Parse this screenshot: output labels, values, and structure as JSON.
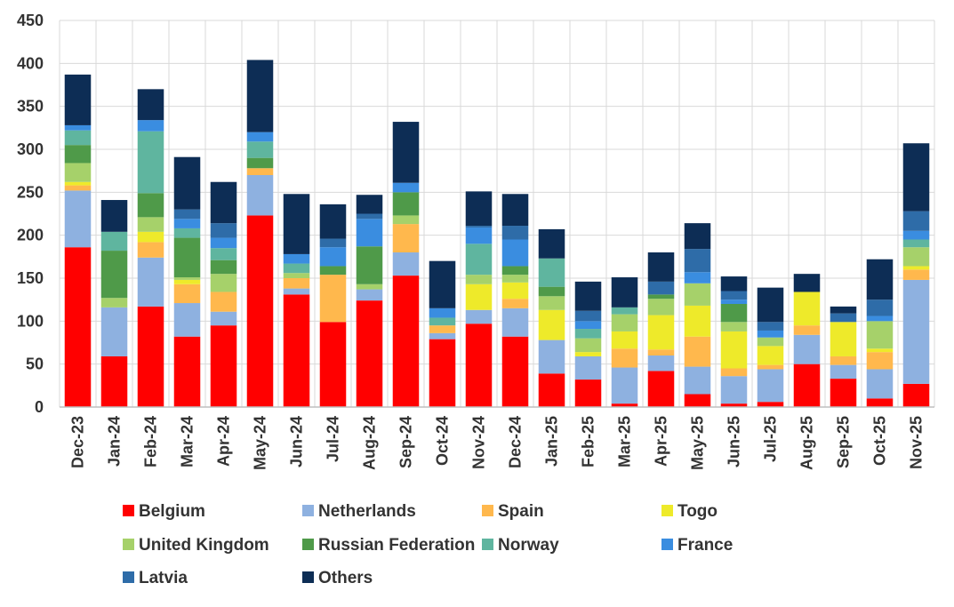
{
  "chart_data": {
    "type": "bar",
    "stacked": true,
    "title": "",
    "xlabel": "",
    "ylabel": "",
    "ylim": [
      0,
      450
    ],
    "yticks": [
      0,
      50,
      100,
      150,
      200,
      250,
      300,
      350,
      400,
      450
    ],
    "grid": true,
    "legend_position": "bottom",
    "categories": [
      "Dec-23",
      "Jan-24",
      "Feb-24",
      "Mar-24",
      "Apr-24",
      "May-24",
      "Jun-24",
      "Jul-24",
      "Aug-24",
      "Sep-24",
      "Oct-24",
      "Nov-24",
      "Dec-24",
      "Jan-25",
      "Feb-25",
      "Mar-25",
      "Apr-25",
      "May-25",
      "Jun-25",
      "Jul-25",
      "Aug-25",
      "Sep-25",
      "Oct-25",
      "Nov-25"
    ],
    "series": [
      {
        "name": "Belgium",
        "color": "#ff0000",
        "values": [
          186,
          59,
          117,
          82,
          95,
          223,
          131,
          99,
          124,
          153,
          79,
          97,
          82,
          39,
          32,
          4,
          42,
          15,
          4,
          6,
          50,
          33,
          10,
          27
        ]
      },
      {
        "name": "Netherlands",
        "color": "#8eb1e0",
        "values": [
          66,
          57,
          57,
          39,
          16,
          47,
          7,
          0,
          13,
          27,
          7,
          16,
          33,
          39,
          27,
          42,
          18,
          32,
          32,
          38,
          34,
          16,
          34,
          121
        ]
      },
      {
        "name": "Spain",
        "color": "#ffb84d",
        "values": [
          6,
          0,
          18,
          22,
          23,
          8,
          12,
          55,
          0,
          33,
          9,
          0,
          11,
          0,
          0,
          22,
          7,
          35,
          9,
          5,
          11,
          10,
          20,
          12
        ]
      },
      {
        "name": "Togo",
        "color": "#eeea2a",
        "values": [
          4,
          0,
          12,
          5,
          0,
          0,
          0,
          0,
          0,
          0,
          0,
          30,
          19,
          35,
          5,
          20,
          40,
          36,
          43,
          22,
          39,
          40,
          4,
          4
        ]
      },
      {
        "name": "United Kingdom",
        "color": "#a6d16a",
        "values": [
          22,
          11,
          17,
          3,
          21,
          0,
          6,
          0,
          6,
          10,
          0,
          11,
          9,
          16,
          16,
          20,
          19,
          26,
          11,
          10,
          0,
          0,
          32,
          22
        ]
      },
      {
        "name": "Russian Federation",
        "color": "#4f9a49",
        "values": [
          21,
          55,
          28,
          46,
          16,
          12,
          0,
          10,
          44,
          27,
          0,
          0,
          10,
          11,
          0,
          0,
          5,
          0,
          21,
          0,
          0,
          0,
          0,
          0
        ]
      },
      {
        "name": "Norway",
        "color": "#5fb59f",
        "values": [
          17,
          22,
          72,
          11,
          14,
          19,
          11,
          0,
          0,
          0,
          9,
          36,
          0,
          33,
          11,
          8,
          0,
          0,
          0,
          0,
          0,
          0,
          0,
          9
        ]
      },
      {
        "name": "France",
        "color": "#3a8de0",
        "values": [
          6,
          0,
          13,
          11,
          12,
          11,
          11,
          22,
          32,
          11,
          11,
          19,
          31,
          0,
          9,
          0,
          0,
          13,
          5,
          8,
          0,
          0,
          6,
          10
        ]
      },
      {
        "name": "Latvia",
        "color": "#2e6ca8",
        "values": [
          0,
          0,
          0,
          11,
          17,
          0,
          0,
          10,
          6,
          0,
          0,
          2,
          16,
          0,
          12,
          0,
          15,
          27,
          10,
          10,
          0,
          10,
          19,
          23
        ]
      },
      {
        "name": "Others",
        "color": "#0d2d55",
        "values": [
          59,
          37,
          36,
          61,
          48,
          84,
          70,
          40,
          22,
          71,
          55,
          40,
          37,
          34,
          34,
          35,
          34,
          30,
          17,
          40,
          21,
          8,
          47,
          79
        ]
      }
    ]
  }
}
